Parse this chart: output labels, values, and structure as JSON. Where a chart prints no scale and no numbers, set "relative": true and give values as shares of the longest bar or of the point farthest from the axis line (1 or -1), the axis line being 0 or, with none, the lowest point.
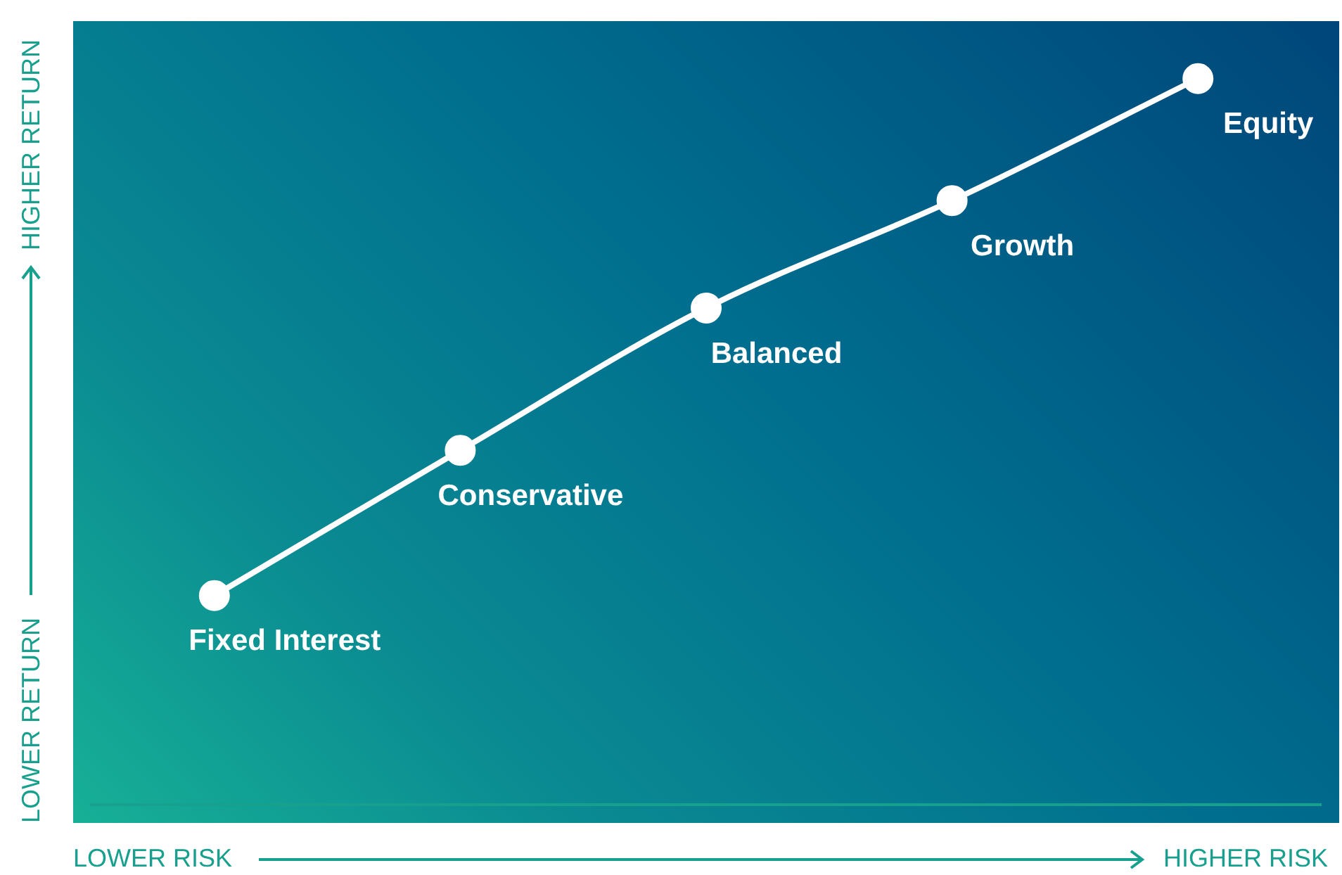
{
  "chart_data": {
    "type": "line",
    "relative": true,
    "categories": [
      "Fixed Interest",
      "Conservative",
      "Balanced",
      "Growth",
      "Equity"
    ],
    "series": [
      {
        "color": "#ffffff",
        "values": [
          0.288,
          0.488,
          0.684,
          0.832,
          1
        ]
      }
    ],
    "marker": "circle",
    "line_style": "solid",
    "annotations": [
      "LOWER RISK",
      "HIGHER RISK",
      "LOWER RETURN",
      "HIGHER RETURN"
    ]
  }
}
